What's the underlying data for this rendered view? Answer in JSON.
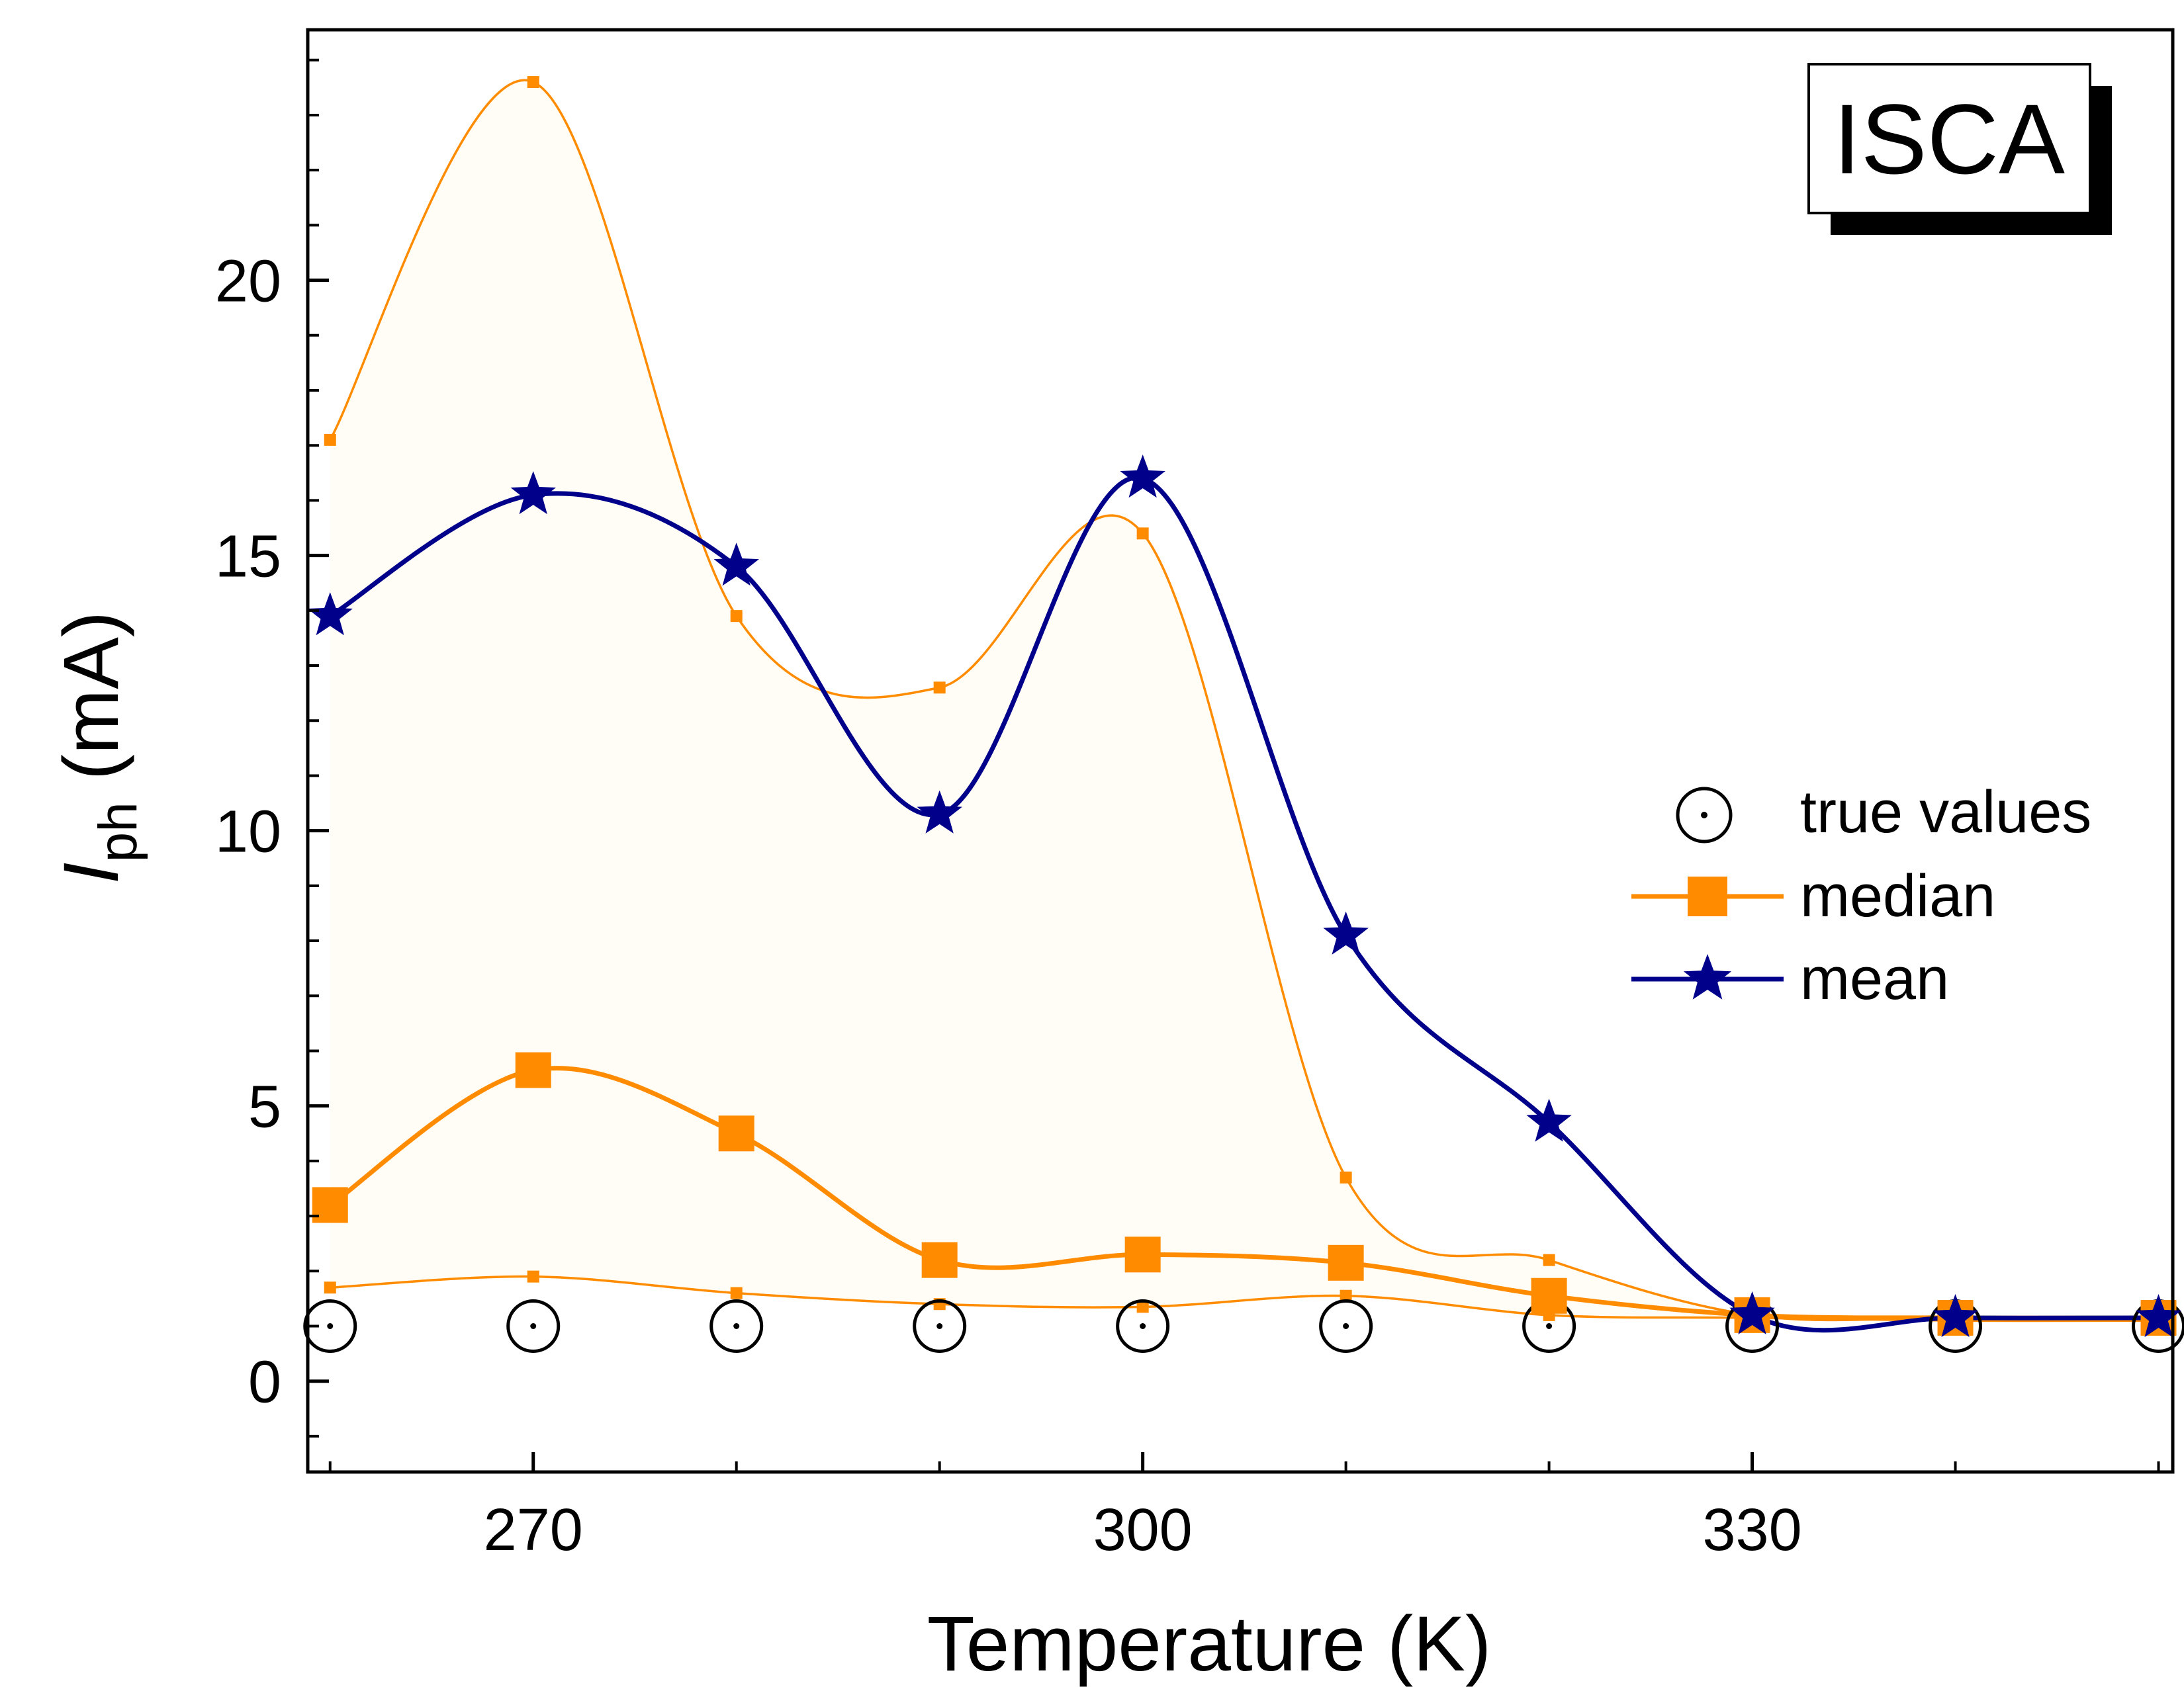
{
  "chart_data": {
    "type": "line",
    "xlabel": "Temperature (K)",
    "ylabel": "I",
    "ylabel_sub": "ph",
    "ylabel_unit": " (mA)",
    "xlim": [
      258.9,
      350.7
    ],
    "ylim": [
      -1.65,
      24.55
    ],
    "xticks": [
      270,
      300,
      330
    ],
    "xtick_labels": [
      "270",
      "300",
      "330"
    ],
    "xminor": [
      260,
      280,
      290,
      310,
      320,
      340,
      350
    ],
    "yticks": [
      0,
      5,
      10,
      15,
      20
    ],
    "ytick_labels": [
      "0",
      "5",
      "10",
      "15",
      "20"
    ],
    "yminor_step": 1,
    "x": [
      260,
      270,
      280,
      290,
      300,
      310,
      320,
      330,
      340,
      350
    ],
    "band": {
      "upper": [
        17.1,
        23.6,
        13.9,
        12.6,
        15.4,
        3.7,
        2.2,
        1.2,
        1.15,
        1.15
      ],
      "lower": [
        1.7,
        1.9,
        1.6,
        1.4,
        1.35,
        1.55,
        1.2,
        1.15,
        1.1,
        1.1
      ],
      "fill": "#fffdf5",
      "stroke": "#ff8c00"
    },
    "series": [
      {
        "name": "true values",
        "marker": "circle-dot",
        "color": "#000000",
        "line": false,
        "values": [
          1.0,
          1.0,
          1.0,
          1.0,
          1.0,
          1.0,
          1.0,
          1.0,
          1.0,
          1.0
        ]
      },
      {
        "name": "median",
        "marker": "square",
        "color": "#ff8c00",
        "line": true,
        "values": [
          3.2,
          5.65,
          4.5,
          2.2,
          2.3,
          2.15,
          1.55,
          1.2,
          1.15,
          1.15
        ]
      },
      {
        "name": "mean",
        "marker": "star",
        "color": "#00008b",
        "line": true,
        "values": [
          13.9,
          16.1,
          14.8,
          10.3,
          16.4,
          8.1,
          4.7,
          1.2,
          1.15,
          1.15
        ]
      }
    ],
    "legend_position": "center-right",
    "annotation": "ISCA"
  }
}
